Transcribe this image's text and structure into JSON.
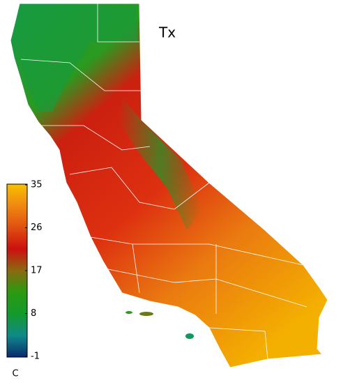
{
  "title": "Tx",
  "colorbar": {
    "lim": [
      -1,
      35
    ],
    "ticks": [
      35,
      26,
      17,
      8,
      -1
    ],
    "unit": "C",
    "colors": [
      "#082a6e",
      "#108a8a",
      "#139a2c",
      "#2a9a10",
      "#8a6a10",
      "#cc1010",
      "#e05010",
      "#f08810",
      "#f8c000"
    ]
  }
}
